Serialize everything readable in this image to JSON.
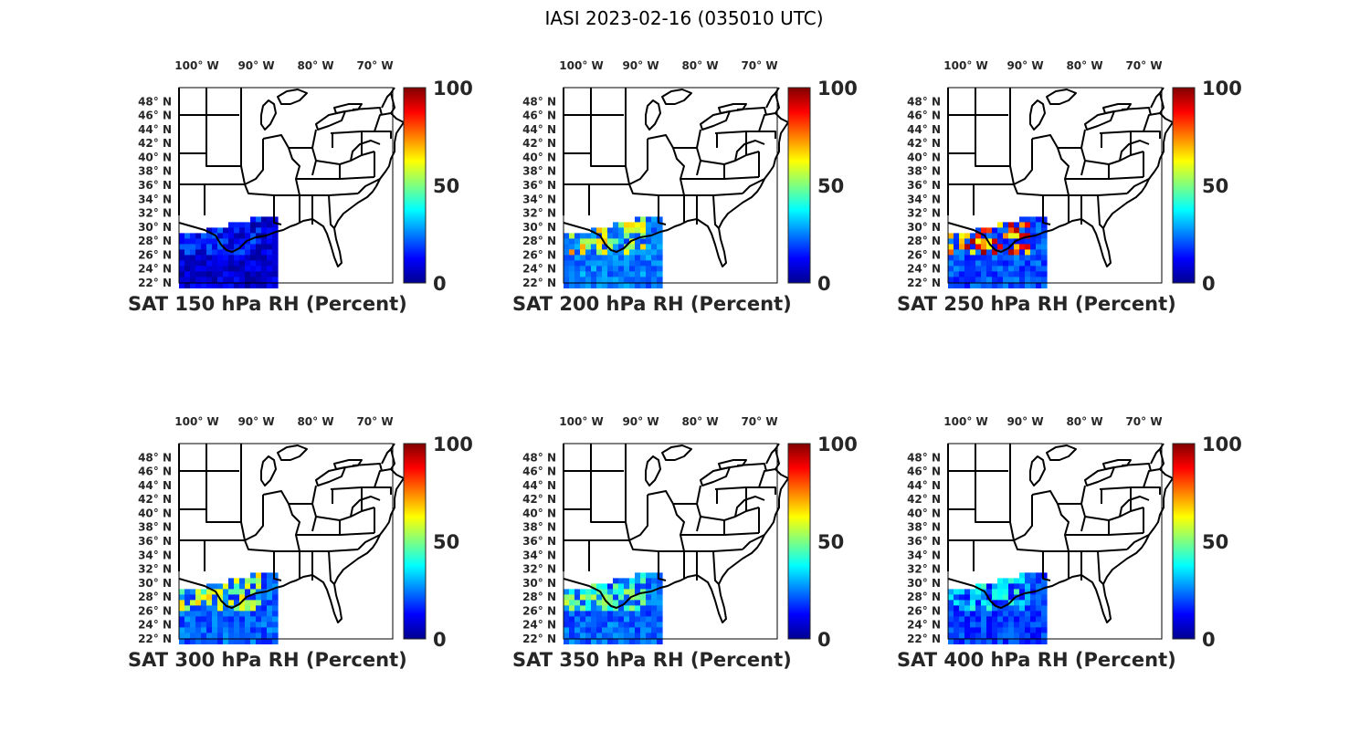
{
  "figure": {
    "title": "IASI 2023-02-16 (035010 UTC)"
  },
  "axes": {
    "lon_labels": [
      {
        "value": -100,
        "text": "100° W"
      },
      {
        "value": -90,
        "text": "90° W"
      },
      {
        "value": -80,
        "text": "80° W"
      },
      {
        "value": -70,
        "text": "70° W"
      }
    ],
    "lat_labels": [
      {
        "value": 48,
        "text": "48° N"
      },
      {
        "value": 46,
        "text": "46° N"
      },
      {
        "value": 44,
        "text": "44° N"
      },
      {
        "value": 42,
        "text": "42° N"
      },
      {
        "value": 40,
        "text": "40° N"
      },
      {
        "value": 38,
        "text": "38° N"
      },
      {
        "value": 36,
        "text": "36° N"
      },
      {
        "value": 34,
        "text": "34° N"
      },
      {
        "value": 32,
        "text": "32° N"
      },
      {
        "value": 30,
        "text": "30° N"
      },
      {
        "value": 28,
        "text": "28° N"
      },
      {
        "value": 26,
        "text": "26° N"
      },
      {
        "value": 24,
        "text": "24° N"
      },
      {
        "value": 22,
        "text": "22° N"
      }
    ],
    "lon_range": [
      -103,
      -67
    ],
    "lat_range": [
      22,
      50
    ]
  },
  "colorbar": {
    "ticks": [
      "100",
      "50",
      "0"
    ],
    "range": [
      0,
      100
    ],
    "colormap": "jet",
    "colors": [
      "#00008f",
      "#0000ff",
      "#00ffff",
      "#ffff00",
      "#ff0000",
      "#800000"
    ]
  },
  "chart_data": [
    {
      "type": "heatmap",
      "title": "SAT 150 hPa RH (Percent)",
      "level_hPa": 150,
      "mean_rh_percent": 8,
      "moist_rh_percent": 20
    },
    {
      "type": "heatmap",
      "title": "SAT 200 hPa RH (Percent)",
      "level_hPa": 200,
      "mean_rh_percent": 25,
      "moist_rh_percent": 65
    },
    {
      "type": "heatmap",
      "title": "SAT 250 hPa RH (Percent)",
      "level_hPa": 250,
      "mean_rh_percent": 20,
      "moist_rh_percent": 85
    },
    {
      "type": "heatmap",
      "title": "SAT 300 hPa RH (Percent)",
      "level_hPa": 300,
      "mean_rh_percent": 22,
      "moist_rh_percent": 60
    },
    {
      "type": "heatmap",
      "title": "SAT 350 hPa RH (Percent)",
      "level_hPa": 350,
      "mean_rh_percent": 22,
      "moist_rh_percent": 50
    },
    {
      "type": "heatmap",
      "title": "SAT 400 hPa RH (Percent)",
      "level_hPa": 400,
      "mean_rh_percent": 18,
      "moist_rh_percent": 40
    }
  ]
}
